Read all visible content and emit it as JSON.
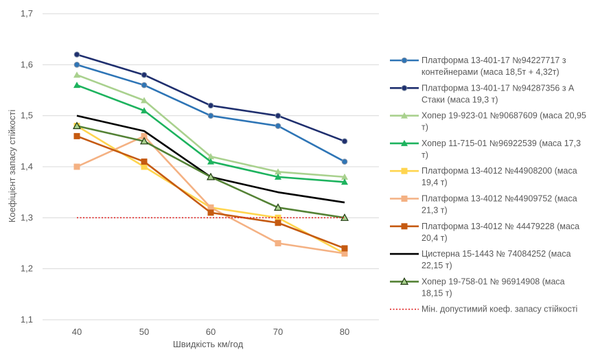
{
  "chart_data": {
    "type": "line",
    "xlabel": "Швидкість км/год",
    "ylabel": "Коефіцієнт запасу стійкості",
    "x": [
      40,
      50,
      60,
      70,
      80
    ],
    "x_ticks": [
      "40",
      "50",
      "60",
      "70",
      "80"
    ],
    "ylim": [
      1.1,
      1.7
    ],
    "y_ticks": [
      "1,1",
      "1,2",
      "1,3",
      "1,4",
      "1,5",
      "1,6",
      "1,7"
    ],
    "grid": "horizontal",
    "legend_position": "right",
    "series": [
      {
        "name": "Платформа 13-401-17 №94227717 з контейнерами (маса 18,5т + 4,32т)",
        "legend_lines": [
          "Платформа 13-401-17 №94227717 з",
          "контейнерами (маса 18,5т + 4,32т)"
        ],
        "color": "#2E75B6",
        "marker": "circle",
        "values": [
          1.6,
          1.56,
          1.5,
          1.48,
          1.41
        ]
      },
      {
        "name": "Платформа 13-401-17 №94287356 з А Стаки (маса 19,3 т)",
        "legend_lines": [
          "Платформа  13-401-17 №94287356 з А",
          "Стаки (маса 19,3 т)"
        ],
        "color": "#1F2F6E",
        "marker": "circle",
        "values": [
          1.62,
          1.58,
          1.52,
          1.5,
          1.45
        ]
      },
      {
        "name": "Хопер 19-923-01 №90687609 (маса 20,95 т)",
        "legend_lines": [
          "Хопер 19-923-01 №90687609 (маса 20,95",
          "т)"
        ],
        "color": "#A9D18E",
        "marker": "triangle",
        "values": [
          1.58,
          1.53,
          1.42,
          1.39,
          1.38
        ]
      },
      {
        "name": "Хопер 11-715-01 №96922539 (маса 17,3 т)",
        "legend_lines": [
          "Хопер 11-715-01 №96922539 (маса 17,3",
          "т)"
        ],
        "color": "#1DB35E",
        "marker": "triangle",
        "values": [
          1.56,
          1.51,
          1.41,
          1.38,
          1.37
        ]
      },
      {
        "name": "Платформа 13-4012 №44908200 (маса 19,4 т)",
        "legend_lines": [
          "Платформа 13-4012 №44908200 (маса",
          "19,4 т)"
        ],
        "color": "#FFD54F",
        "marker": "square",
        "values": [
          1.48,
          1.4,
          1.32,
          1.3,
          1.23
        ]
      },
      {
        "name": "Платформа 13-4012 №44909752 (маса 21,3 т)",
        "legend_lines": [
          "Платформа 13-4012 №44909752 (маса",
          "21,3 т)"
        ],
        "color": "#F4B183",
        "marker": "square",
        "values": [
          1.4,
          1.46,
          1.32,
          1.25,
          1.23
        ]
      },
      {
        "name": "Платформа 13-4012 № 44479228 (маса 20,4 т)",
        "legend_lines": [
          "Платформа 13-4012 № 44479228 (маса",
          "20,4 т)"
        ],
        "color": "#C55A11",
        "marker": "square",
        "values": [
          1.46,
          1.41,
          1.31,
          1.29,
          1.24
        ]
      },
      {
        "name": "Цистерна 15-1443 № 74084252 (маса 22,15 т)",
        "legend_lines": [
          "Цистерна 15-1443 № 74084252 (маса",
          "22,15 т)"
        ],
        "color": "#000000",
        "marker": "none",
        "values": [
          1.5,
          1.47,
          1.38,
          1.35,
          1.33
        ]
      },
      {
        "name": "Хопер 19-758-01 № 96914908 (маса 18,15 т)",
        "legend_lines": [
          "Хопер 19-758-01 № 96914908 (маса",
          "18,15 т)"
        ],
        "color": "#548235",
        "marker": "triangle-open",
        "values": [
          1.48,
          1.45,
          1.38,
          1.32,
          1.3
        ]
      },
      {
        "name": "Мін. допустимий коеф. запасу стійкості",
        "legend_lines": [
          "Мін. допустимий коеф. запасу стійкості"
        ],
        "color": "#E02020",
        "marker": "none",
        "dashed": true,
        "values": [
          1.3,
          1.3,
          1.3,
          1.3,
          1.3
        ]
      }
    ]
  }
}
